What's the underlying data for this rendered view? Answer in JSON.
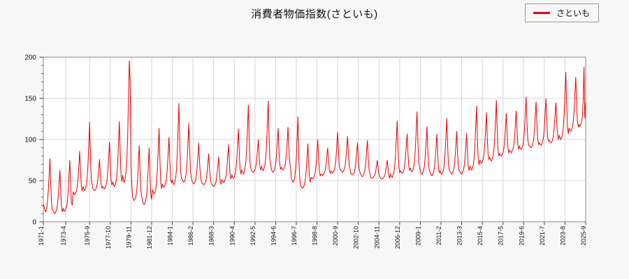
{
  "page": {
    "background": "#f7f7f7"
  },
  "chart_data": {
    "type": "line",
    "title": "消費者物価指数(さといも)",
    "series_name": "さといも",
    "legend_position": "top-right",
    "grid": true,
    "ylim": [
      0,
      200
    ],
    "y_ticks": [
      0,
      50,
      100,
      150,
      200
    ],
    "y_minor_tick_step": 10,
    "x_range": [
      "1971-1",
      "2025-9"
    ],
    "x_tick_labels": [
      "1971-1",
      "1973-4",
      "1975-9",
      "1977-10",
      "1979-11",
      "1981-12",
      "1984-1",
      "1986-2",
      "1988-3",
      "1990-4",
      "1992-5",
      "1994-6",
      "1996-7",
      "1998-8",
      "2000-9",
      "2002-10",
      "2004-11",
      "2006-12",
      "2009-1",
      "2011-2",
      "2013-3",
      "2015-4",
      "2017-5",
      "2019-6",
      "2021-7",
      "2023-8",
      "2025-9"
    ],
    "x_tick_month_indices": [
      0,
      27,
      56,
      81,
      106,
      131,
      156,
      181,
      206,
      231,
      256,
      281,
      306,
      331,
      356,
      381,
      406,
      431,
      456,
      481,
      506,
      531,
      556,
      581,
      606,
      631,
      656
    ],
    "colors": {
      "line": "#ee0000",
      "grid": "#d4d4d4",
      "axis": "#888888",
      "tick": "#444444",
      "text": "#111111",
      "plot_bg": "#ffffff",
      "page_bg": "#f7f7f7"
    },
    "monthly_values_by_year": [
      {
        "year": 1971,
        "values": [
          21,
          18,
          14,
          12,
          16,
          24,
          38,
          56,
          77,
          46,
          22,
          14
        ]
      },
      {
        "year": 1972,
        "values": [
          13,
          11,
          10,
          12,
          14,
          20,
          30,
          46,
          63,
          38,
          20,
          12
        ]
      },
      {
        "year": 1973,
        "values": [
          16,
          13,
          13,
          15,
          18,
          24,
          37,
          55,
          75,
          45,
          24,
          20
        ]
      },
      {
        "year": 1974,
        "values": [
          36,
          34,
          33,
          35,
          37,
          43,
          53,
          69,
          86,
          61,
          43,
          37
        ]
      },
      {
        "year": 1975,
        "values": [
          43,
          40,
          38,
          40,
          45,
          53,
          70,
          94,
          121,
          81,
          53,
          45
        ]
      },
      {
        "year": 1976,
        "values": [
          40,
          39,
          38,
          39,
          41,
          45,
          52,
          64,
          76,
          58,
          45,
          41
        ]
      },
      {
        "year": 1977,
        "values": [
          43,
          41,
          40,
          42,
          45,
          50,
          62,
          79,
          97,
          70,
          50,
          45
        ]
      },
      {
        "year": 1978,
        "values": [
          48,
          45,
          43,
          45,
          49,
          57,
          73,
          97,
          122,
          84,
          57,
          49
        ]
      },
      {
        "year": 1979,
        "values": [
          57,
          51,
          48,
          52,
          60,
          75,
          104,
          149,
          196,
          170,
          70,
          45
        ]
      },
      {
        "year": 1980,
        "values": [
          30,
          27,
          26,
          28,
          31,
          38,
          51,
          72,
          93,
          61,
          38,
          31
        ]
      },
      {
        "year": 1981,
        "values": [
          25,
          22,
          21,
          23,
          27,
          33,
          47,
          68,
          90,
          57,
          33,
          27
        ]
      },
      {
        "year": 1982,
        "values": [
          39,
          36,
          34,
          36,
          40,
          48,
          64,
          88,
          114,
          76,
          48,
          40
        ]
      },
      {
        "year": 1983,
        "values": [
          46,
          43,
          42,
          44,
          47,
          53,
          65,
          83,
          103,
          74,
          53,
          47
        ]
      },
      {
        "year": 1984,
        "values": [
          51,
          47,
          45,
          48,
          53,
          63,
          83,
          112,
          144,
          96,
          63,
          53
        ]
      },
      {
        "year": 1985,
        "values": [
          52,
          49,
          48,
          50,
          54,
          61,
          75,
          97,
          120,
          85,
          61,
          54
        ]
      },
      {
        "year": 1986,
        "values": [
          49,
          47,
          46,
          48,
          50,
          55,
          65,
          80,
          96,
          72,
          55,
          50
        ]
      },
      {
        "year": 1987,
        "values": [
          47,
          46,
          45,
          46,
          48,
          52,
          59,
          71,
          83,
          65,
          52,
          48
        ]
      },
      {
        "year": 1988,
        "values": [
          45,
          44,
          43,
          44,
          46,
          49,
          57,
          67,
          79,
          62,
          49,
          46
        ]
      },
      {
        "year": 1989,
        "values": [
          51,
          49,
          48,
          49,
          52,
          56,
          65,
          79,
          94,
          72,
          56,
          52
        ]
      },
      {
        "year": 1990,
        "values": [
          57,
          54,
          53,
          55,
          58,
          64,
          76,
          94,
          113,
          84,
          64,
          58
        ]
      },
      {
        "year": 1991,
        "values": [
          63,
          60,
          58,
          61,
          65,
          73,
          90,
          115,
          142,
          102,
          73,
          65
        ]
      },
      {
        "year": 1992,
        "values": [
          62,
          61,
          60,
          61,
          63,
          67,
          75,
          87,
          100,
          81,
          67,
          63
        ]
      },
      {
        "year": 1993,
        "values": [
          67,
          64,
          62,
          65,
          69,
          77,
          94,
          120,
          147,
          106,
          77,
          69
        ]
      },
      {
        "year": 1994,
        "values": [
          63,
          61,
          60,
          62,
          64,
          70,
          81,
          97,
          114,
          88,
          70,
          64
        ]
      },
      {
        "year": 1995,
        "values": [
          66,
          64,
          63,
          65,
          67,
          72,
          83,
          98,
          115,
          90,
          72,
          67
        ]
      },
      {
        "year": 1996,
        "values": [
          53,
          50,
          48,
          50,
          54,
          62,
          78,
          102,
          128,
          80,
          55,
          44
        ]
      },
      {
        "year": 1997,
        "values": [
          43,
          41,
          41,
          43,
          46,
          52,
          63,
          79,
          95,
          70,
          54,
          48
        ]
      },
      {
        "year": 1998,
        "values": [
          54,
          53,
          52,
          54,
          56,
          61,
          70,
          84,
          100,
          76,
          61,
          56
        ]
      },
      {
        "year": 1999,
        "values": [
          58,
          57,
          56,
          58,
          60,
          63,
          70,
          80,
          90,
          74,
          63,
          59
        ]
      },
      {
        "year": 2000,
        "values": [
          62,
          60,
          59,
          61,
          63,
          68,
          78,
          93,
          109,
          85,
          68,
          63
        ]
      },
      {
        "year": 2001,
        "values": [
          63,
          61,
          60,
          61,
          64,
          68,
          77,
          90,
          104,
          83,
          68,
          64
        ]
      },
      {
        "year": 2002,
        "values": [
          59,
          58,
          57,
          58,
          60,
          64,
          72,
          84,
          96,
          77,
          64,
          60
        ]
      },
      {
        "year": 2003,
        "values": [
          58,
          56,
          55,
          56,
          59,
          63,
          72,
          85,
          99,
          78,
          63,
          59
        ]
      },
      {
        "year": 2004,
        "values": [
          54,
          53,
          53,
          54,
          55,
          57,
          61,
          68,
          75,
          64,
          57,
          55
        ]
      },
      {
        "year": 2005,
        "values": [
          53,
          52,
          52,
          53,
          54,
          56,
          61,
          68,
          75,
          64,
          56,
          53
        ]
      },
      {
        "year": 2006,
        "values": [
          58,
          55,
          54,
          57,
          60,
          67,
          81,
          101,
          123,
          90,
          67,
          60
        ]
      },
      {
        "year": 2007,
        "values": [
          62,
          60,
          59,
          60,
          63,
          68,
          77,
          92,
          107,
          84,
          68,
          63
        ]
      },
      {
        "year": 2008,
        "values": [
          65,
          62,
          61,
          63,
          67,
          74,
          89,
          111,
          134,
          99,
          74,
          67
        ]
      },
      {
        "year": 2009,
        "values": [
          61,
          59,
          58,
          60,
          63,
          68,
          80,
          97,
          116,
          88,
          68,
          63
        ]
      },
      {
        "year": 2010,
        "values": [
          59,
          57,
          56,
          58,
          60,
          65,
          75,
          91,
          107,
          83,
          65,
          60
        ]
      },
      {
        "year": 2011,
        "values": [
          62,
          59,
          58,
          60,
          63,
          70,
          84,
          104,
          126,
          93,
          70,
          63
        ]
      },
      {
        "year": 2012,
        "values": [
          61,
          59,
          58,
          60,
          62,
          67,
          78,
          93,
          110,
          85,
          67,
          62
        ]
      },
      {
        "year": 2013,
        "values": [
          61,
          59,
          58,
          60,
          62,
          67,
          77,
          92,
          108,
          84,
          67,
          62
        ]
      },
      {
        "year": 2014,
        "values": [
          68,
          65,
          63,
          65,
          69,
          77,
          93,
          116,
          141,
          104,
          77,
          69
        ]
      },
      {
        "year": 2015,
        "values": [
          75,
          72,
          71,
          73,
          76,
          82,
          95,
          113,
          133,
          103,
          82,
          76
        ]
      },
      {
        "year": 2016,
        "values": [
          78,
          75,
          74,
          76,
          80,
          87,
          102,
          124,
          148,
          112,
          87,
          80
        ]
      },
      {
        "year": 2017,
        "values": [
          83,
          81,
          80,
          82,
          84,
          89,
          100,
          115,
          132,
          107,
          89,
          84
        ]
      },
      {
        "year": 2018,
        "values": [
          87,
          85,
          84,
          86,
          88,
          93,
          103,
          119,
          135,
          111,
          93,
          88
        ]
      },
      {
        "year": 2019,
        "values": [
          92,
          89,
          88,
          90,
          93,
          100,
          112,
          132,
          152,
          121,
          100,
          93
        ]
      },
      {
        "year": 2020,
        "values": [
          93,
          91,
          90,
          92,
          94,
          100,
          111,
          128,
          146,
          119,
          100,
          94
        ]
      },
      {
        "year": 2021,
        "values": [
          96,
          94,
          93,
          95,
          98,
          103,
          115,
          132,
          150,
          123,
          103,
          98
        ]
      },
      {
        "year": 2022,
        "values": [
          99,
          97,
          96,
          97,
          100,
          105,
          115,
          129,
          145,
          121,
          105,
          100
        ]
      },
      {
        "year": 2023,
        "values": [
          105,
          102,
          100,
          102,
          107,
          115,
          131,
          156,
          182,
          143,
          115,
          107
        ]
      },
      {
        "year": 2024,
        "values": [
          114,
          111,
          110,
          112,
          115,
          122,
          135,
          155,
          176,
          144,
          122,
          115
        ]
      },
      {
        "year": 2025,
        "values": [
          118,
          116,
          118,
          122,
          128,
          150,
          188,
          126,
          145
        ]
      }
    ]
  }
}
